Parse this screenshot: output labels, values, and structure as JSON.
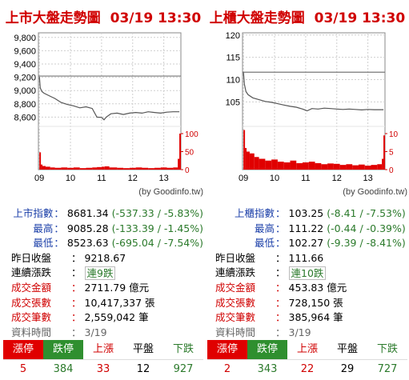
{
  "colors": {
    "title": "#d00000",
    "line": "#555555",
    "volume": "#e00000",
    "label_blue": "#1a3ea8",
    "change_green": "#2b7a2b",
    "limit_up_bg": "#e00000",
    "limit_down_bg": "#2f8f2f"
  },
  "left": {
    "title": "上市大盤走勢圖",
    "datetime": "03/19 13:30",
    "credit": "(by Goodinfo.tw)",
    "chart_data": {
      "type": "line",
      "price_axis": {
        "ticks": [
          "9,800",
          "9,600",
          "9,400",
          "9,200",
          "9,000",
          "8,800",
          "8,600"
        ],
        "tick_values": [
          9800,
          9600,
          9400,
          9200,
          9000,
          8800,
          8600
        ],
        "range": [
          8460,
          9870
        ],
        "ref_line": 9218.67
      },
      "volume_axis": {
        "ticks": [
          "100",
          "50",
          "0"
        ],
        "tick_values": [
          100,
          50,
          0
        ],
        "range": [
          0,
          120
        ]
      },
      "time_axis": {
        "ticks": [
          "09",
          "10",
          "11",
          "12",
          "13"
        ]
      },
      "price_series": [
        [
          9.0,
          9210
        ],
        [
          9.03,
          9040
        ],
        [
          9.08,
          8985
        ],
        [
          9.15,
          8960
        ],
        [
          9.3,
          8925
        ],
        [
          9.5,
          8880
        ],
        [
          9.7,
          8820
        ],
        [
          9.9,
          8790
        ],
        [
          10.1,
          8770
        ],
        [
          10.3,
          8740
        ],
        [
          10.5,
          8755
        ],
        [
          10.7,
          8730
        ],
        [
          10.85,
          8600
        ],
        [
          11.0,
          8595
        ],
        [
          11.08,
          8560
        ],
        [
          11.15,
          8600
        ],
        [
          11.3,
          8650
        ],
        [
          11.5,
          8660
        ],
        [
          11.7,
          8640
        ],
        [
          11.9,
          8660
        ],
        [
          12.1,
          8670
        ],
        [
          12.3,
          8660
        ],
        [
          12.5,
          8680
        ],
        [
          12.7,
          8670
        ],
        [
          12.9,
          8660
        ],
        [
          13.1,
          8675
        ],
        [
          13.3,
          8680
        ],
        [
          13.5,
          8681
        ]
      ],
      "volume_series": [
        [
          9.0,
          48
        ],
        [
          9.05,
          14
        ],
        [
          9.1,
          10
        ],
        [
          9.2,
          8
        ],
        [
          9.35,
          6
        ],
        [
          9.5,
          5
        ],
        [
          9.7,
          6
        ],
        [
          9.9,
          5
        ],
        [
          10.1,
          6
        ],
        [
          10.3,
          4
        ],
        [
          10.5,
          5
        ],
        [
          10.7,
          6
        ],
        [
          10.85,
          7
        ],
        [
          11.0,
          8
        ],
        [
          11.1,
          9
        ],
        [
          11.25,
          6
        ],
        [
          11.5,
          5
        ],
        [
          11.7,
          4
        ],
        [
          11.9,
          5
        ],
        [
          12.1,
          6
        ],
        [
          12.3,
          5
        ],
        [
          12.5,
          4
        ],
        [
          12.7,
          5
        ],
        [
          12.9,
          6
        ],
        [
          13.1,
          5
        ],
        [
          13.3,
          6
        ],
        [
          13.45,
          30
        ],
        [
          13.5,
          100
        ]
      ]
    },
    "stats": {
      "index": {
        "label": "上市指數",
        "value": "8681.34",
        "change": "(-537.33 / -5.83%)"
      },
      "high": {
        "label": "最高",
        "value": "9085.28",
        "change": "(-133.39 / -1.45%)"
      },
      "low": {
        "label": "最低",
        "value": "8523.63",
        "change": "(-695.04 / -7.54%)"
      },
      "prev_close": {
        "label": "昨日收盤",
        "value": "9218.67"
      },
      "streak": {
        "label": "連續漲跌",
        "value": "連9跌"
      },
      "amount": {
        "label": "成交金額",
        "value": "2711.79 億元"
      },
      "shares": {
        "label": "成交張數",
        "value": "10,417,337 張"
      },
      "trades": {
        "label": "成交筆數",
        "value": "2,559,042 筆"
      },
      "data_time": {
        "label": "資料時間",
        "value": "3/19"
      }
    },
    "grid": {
      "headers": [
        "漲停",
        "跌停",
        "上漲",
        "平盤",
        "下跌"
      ],
      "values": [
        "5",
        "384",
        "33",
        "12",
        "927"
      ]
    }
  },
  "right": {
    "title": "上櫃大盤走勢圖",
    "datetime": "03/19 13:30",
    "credit": "(by Goodinfo.tw)",
    "chart_data": {
      "type": "line",
      "price_axis": {
        "ticks": [
          "120",
          "115",
          "110",
          "105"
        ],
        "tick_values": [
          120,
          115,
          110,
          105
        ],
        "range": [
          99.5,
          120.5
        ],
        "ref_line": 111.66
      },
      "volume_axis": {
        "ticks": [
          "10",
          "5",
          "0"
        ],
        "tick_values": [
          10,
          5,
          0
        ],
        "range": [
          0,
          12
        ]
      },
      "time_axis": {
        "ticks": [
          "09",
          "10",
          "11",
          "12",
          "13"
        ]
      },
      "price_series": [
        [
          9.0,
          111.6
        ],
        [
          9.03,
          109.0
        ],
        [
          9.08,
          107.3
        ],
        [
          9.15,
          106.6
        ],
        [
          9.3,
          105.9
        ],
        [
          9.5,
          105.5
        ],
        [
          9.7,
          105.1
        ],
        [
          9.9,
          104.9
        ],
        [
          10.1,
          104.6
        ],
        [
          10.3,
          104.3
        ],
        [
          10.5,
          104.0
        ],
        [
          10.7,
          103.8
        ],
        [
          10.9,
          103.4
        ],
        [
          11.05,
          103.0
        ],
        [
          11.2,
          103.5
        ],
        [
          11.4,
          103.4
        ],
        [
          11.6,
          103.6
        ],
        [
          11.8,
          103.5
        ],
        [
          12.0,
          103.4
        ],
        [
          12.2,
          103.3
        ],
        [
          12.4,
          103.4
        ],
        [
          12.6,
          103.3
        ],
        [
          12.8,
          103.2
        ],
        [
          13.0,
          103.3
        ],
        [
          13.2,
          103.25
        ],
        [
          13.5,
          103.25
        ]
      ],
      "volume_series": [
        [
          9.0,
          11
        ],
        [
          9.05,
          6
        ],
        [
          9.1,
          5
        ],
        [
          9.2,
          4.5
        ],
        [
          9.35,
          3.5
        ],
        [
          9.5,
          3
        ],
        [
          9.7,
          2.5
        ],
        [
          9.9,
          2.8
        ],
        [
          10.1,
          2.2
        ],
        [
          10.3,
          2
        ],
        [
          10.5,
          2.5
        ],
        [
          10.7,
          1.8
        ],
        [
          10.9,
          2
        ],
        [
          11.1,
          2.2
        ],
        [
          11.3,
          1.8
        ],
        [
          11.5,
          1.5
        ],
        [
          11.7,
          1.7
        ],
        [
          11.9,
          1.6
        ],
        [
          12.1,
          1.3
        ],
        [
          12.3,
          1.5
        ],
        [
          12.5,
          1.2
        ],
        [
          12.7,
          1.4
        ],
        [
          12.9,
          1.1
        ],
        [
          13.1,
          1.3
        ],
        [
          13.3,
          1.5
        ],
        [
          13.45,
          3
        ],
        [
          13.5,
          9.5
        ]
      ]
    },
    "stats": {
      "index": {
        "label": "上櫃指數",
        "value": "103.25",
        "change": "(-8.41 / -7.53%)"
      },
      "high": {
        "label": "最高",
        "value": "111.22",
        "change": "(-0.44 / -0.39%)"
      },
      "low": {
        "label": "最低",
        "value": "102.27",
        "change": "(-9.39 / -8.41%)"
      },
      "prev_close": {
        "label": "昨日收盤",
        "value": "111.66"
      },
      "streak": {
        "label": "連續漲跌",
        "value": "連10跌"
      },
      "amount": {
        "label": "成交金額",
        "value": "453.83 億元"
      },
      "shares": {
        "label": "成交張數",
        "value": "728,150 張"
      },
      "trades": {
        "label": "成交筆數",
        "value": "385,964 筆"
      },
      "data_time": {
        "label": "資料時間",
        "value": "3/19"
      }
    },
    "grid": {
      "headers": [
        "漲停",
        "跌停",
        "上漲",
        "平盤",
        "下跌"
      ],
      "values": [
        "2",
        "343",
        "22",
        "29",
        "727"
      ]
    }
  }
}
